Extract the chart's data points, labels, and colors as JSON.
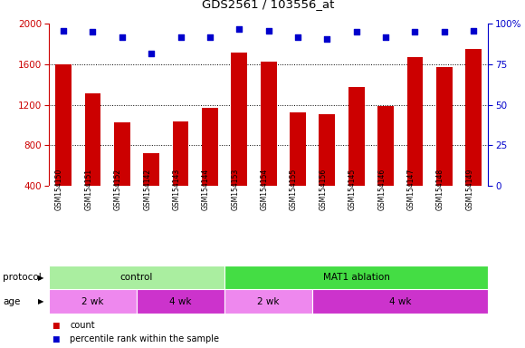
{
  "title": "GDS2561 / 103556_at",
  "samples": [
    "GSM154150",
    "GSM154151",
    "GSM154152",
    "GSM154142",
    "GSM154143",
    "GSM154144",
    "GSM154153",
    "GSM154154",
    "GSM154155",
    "GSM154156",
    "GSM154145",
    "GSM154146",
    "GSM154147",
    "GSM154148",
    "GSM154149"
  ],
  "counts": [
    1600,
    1310,
    1030,
    720,
    1040,
    1170,
    1720,
    1630,
    1130,
    1110,
    1380,
    1190,
    1670,
    1570,
    1750
  ],
  "percentile_ranks": [
    96,
    95,
    92,
    82,
    92,
    92,
    97,
    96,
    92,
    91,
    95,
    92,
    95,
    95,
    96
  ],
  "ylim_left": [
    400,
    2000
  ],
  "ylim_right": [
    0,
    100
  ],
  "yticks_left": [
    400,
    800,
    1200,
    1600,
    2000
  ],
  "yticks_right": [
    0,
    25,
    50,
    75,
    100
  ],
  "bar_color": "#cc0000",
  "dot_color": "#0000cc",
  "protocol_groups": [
    {
      "label": "control",
      "start": 0,
      "end": 6,
      "color": "#aaeea0"
    },
    {
      "label": "MAT1 ablation",
      "start": 6,
      "end": 15,
      "color": "#44dd44"
    }
  ],
  "age_groups": [
    {
      "label": "2 wk",
      "start": 0,
      "end": 3,
      "color": "#ee88ee"
    },
    {
      "label": "4 wk",
      "start": 3,
      "end": 6,
      "color": "#cc33cc"
    },
    {
      "label": "2 wk",
      "start": 6,
      "end": 9,
      "color": "#ee88ee"
    },
    {
      "label": "4 wk",
      "start": 9,
      "end": 15,
      "color": "#cc33cc"
    }
  ],
  "legend_count_label": "count",
  "legend_pct_label": "percentile rank within the sample",
  "bg_color": "#ffffff",
  "tick_area_color": "#bbbbbb",
  "protocol_label": "protocol",
  "age_label": "age"
}
